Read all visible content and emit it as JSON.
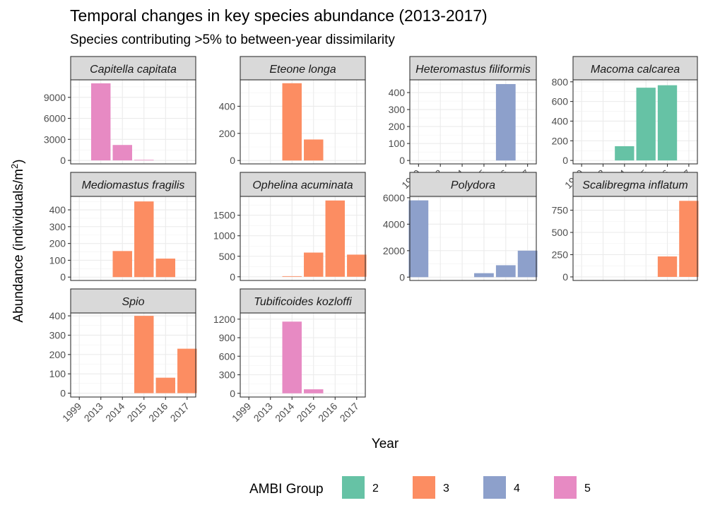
{
  "chart_data": {
    "type": "bar",
    "facet": "wrap",
    "title": "Temporal changes in key species abundance (2013-2017)",
    "subtitle": "Species contributing >5% to between-year dissimilarity",
    "xlabel": "Year",
    "ylabel_main": "Abundance (individuals/m",
    "ylabel_sup": "2",
    "ylabel_close": ")",
    "categories": [
      "1999",
      "2013",
      "2014",
      "2015",
      "2016",
      "2017"
    ],
    "grid": true,
    "legend": {
      "title": "AMBI Group",
      "placement": "bottom",
      "entries": [
        {
          "label": "2",
          "color": "#66c2a5"
        },
        {
          "label": "3",
          "color": "#fc8d62"
        },
        {
          "label": "4",
          "color": "#8da0cb"
        },
        {
          "label": "5",
          "color": "#e78ac3"
        }
      ]
    },
    "panels": [
      {
        "species": "Capitella capitata",
        "ambi_group": "5",
        "color": "#e78ac3",
        "ylim": [
          -500,
          11500
        ],
        "ticks": [
          0,
          3000,
          6000,
          9000
        ],
        "values": [
          0,
          11000,
          2200,
          80,
          0,
          0
        ]
      },
      {
        "species": "Eteone longa",
        "ambi_group": "3",
        "color": "#fc8d62",
        "ylim": [
          -25,
          595
        ],
        "ticks": [
          0,
          200,
          400
        ],
        "values": [
          0,
          0,
          570,
          155,
          0,
          0
        ]
      },
      {
        "species": "Heteromastus filiformis",
        "ambi_group": "4",
        "color": "#8da0cb",
        "ylim": [
          -20,
          475
        ],
        "ticks": [
          0,
          100,
          200,
          300,
          400
        ],
        "values": [
          0,
          0,
          0,
          0,
          450,
          0
        ]
      },
      {
        "species": "Macoma calcarea",
        "ambi_group": "2",
        "color": "#66c2a5",
        "ylim": [
          -35,
          820
        ],
        "ticks": [
          0,
          200,
          400,
          600,
          800
        ],
        "values": [
          0,
          0,
          145,
          740,
          765,
          0
        ]
      },
      {
        "species": "Mediomastus fragilis",
        "ambi_group": "3",
        "color": "#fc8d62",
        "ylim": [
          -20,
          480
        ],
        "ticks": [
          0,
          100,
          200,
          300,
          400
        ],
        "values": [
          0,
          0,
          155,
          450,
          110,
          0
        ]
      },
      {
        "species": "Ophelina acuminata",
        "ambi_group": "3",
        "color": "#fc8d62",
        "ylim": [
          -90,
          1960
        ],
        "ticks": [
          0,
          500,
          1000,
          1500
        ],
        "values": [
          0,
          0,
          15,
          590,
          1860,
          540
        ]
      },
      {
        "species": "Polydora",
        "ambi_group": "4",
        "color": "#8da0cb",
        "ylim": [
          -250,
          6100
        ],
        "ticks": [
          0,
          2000,
          4000,
          6000
        ],
        "values": [
          5800,
          0,
          0,
          300,
          900,
          2000
        ]
      },
      {
        "species": "Scalibregma inflatum",
        "ambi_group": "3",
        "color": "#fc8d62",
        "ylim": [
          -40,
          905
        ],
        "ticks": [
          0,
          250,
          500,
          750
        ],
        "values": [
          0,
          0,
          0,
          0,
          230,
          855
        ]
      },
      {
        "species": "Spio",
        "ambi_group": "3",
        "color": "#fc8d62",
        "ylim": [
          -20,
          415
        ],
        "ticks": [
          0,
          100,
          200,
          300,
          400
        ],
        "values": [
          0,
          0,
          0,
          400,
          80,
          230
        ]
      },
      {
        "species": "Tubificoides kozloffi",
        "ambi_group": "5",
        "color": "#e78ac3",
        "ylim": [
          -60,
          1300
        ],
        "ticks": [
          0,
          300,
          600,
          900,
          1200
        ],
        "values": [
          0,
          0,
          1160,
          65,
          0,
          0
        ]
      }
    ]
  }
}
